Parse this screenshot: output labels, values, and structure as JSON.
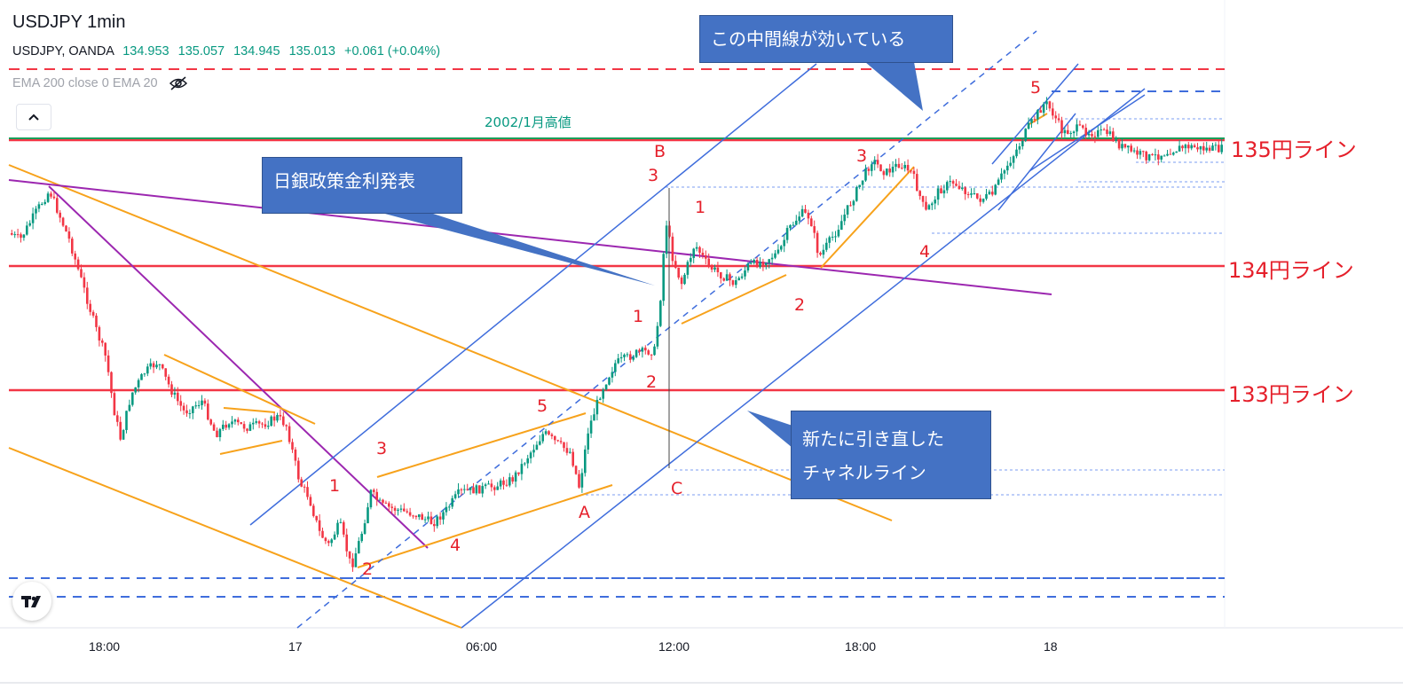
{
  "header": {
    "title": "USDJPY 1min",
    "symbol": "USDJPY, OANDA",
    "open": "134.953",
    "high": "135.057",
    "low": "134.945",
    "close": "135.013",
    "change": "+0.061 (+0.04%)",
    "indicators": "EMA 200 close 0 EMA 20",
    "collapse_icon": "chevron-up-icon",
    "visibility_icon": "eye-off-icon"
  },
  "colors": {
    "candle_up": "#089981",
    "candle_down": "#f23645",
    "price_line": "#f23645",
    "trend_line": "#f7a21b",
    "channel_line": "#3f6ddc",
    "ema_line": "#9c27b0",
    "label": "#e5202b",
    "callout_bg": "#4472c4",
    "high_line": "#1a9e5a"
  },
  "annotations": {
    "callout_middle_line": "この中間線が効いている",
    "callout_boj": "日銀政策金利発表",
    "callout_channel_line1": "新たに引き直した",
    "callout_channel_line2": "チャネルライン",
    "high_2002": "2002/1月高値",
    "line_135": "135円ライン",
    "line_134": "134円ライン",
    "line_133": "133円ライン"
  },
  "wave_labels": [
    "1",
    "2",
    "3",
    "4",
    "5",
    "A",
    "B",
    "C",
    "3",
    "1",
    "2",
    "1",
    "2",
    "3",
    "4",
    "5"
  ],
  "chart_data": {
    "type": "candlestick",
    "symbol": "USDJPY",
    "timeframe": "1min",
    "x_ticks": [
      "18:00",
      "17",
      "06:00",
      "12:00",
      "18:00",
      "18"
    ],
    "ylim": [
      132.4,
      135.6
    ],
    "horizontal_lines": [
      {
        "price": 135.0,
        "label": "135円ライン"
      },
      {
        "price": 134.0,
        "label": "134円ライン"
      },
      {
        "price": 133.0,
        "label": "133円ライン"
      }
    ],
    "reference_line": {
      "price": 135.02,
      "label": "2002/1月高値"
    },
    "last_price": 135.013
  }
}
